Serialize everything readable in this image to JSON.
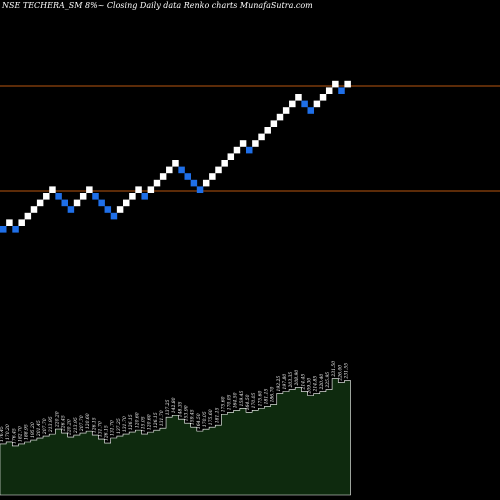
{
  "header": {
    "title": "NSE TECHERA_SM 8%~ Closing Daily data Renko charts MunafaSutra.com"
  },
  "colors": {
    "background": "#000000",
    "up_brick": "#ffffff",
    "down_brick": "#1f6fe8",
    "reference_line": "#b8560f",
    "volume_fill": "#0e2a0e",
    "volume_outline": "#ffffff"
  },
  "chart_data": {
    "type": "renko",
    "brick_directions": [
      "down",
      "up",
      "down",
      "up",
      "up",
      "up",
      "up",
      "up",
      "up",
      "down",
      "down",
      "down",
      "up",
      "up",
      "up",
      "down",
      "down",
      "down",
      "down",
      "up",
      "up",
      "up",
      "up",
      "down",
      "up",
      "up",
      "up",
      "up",
      "up",
      "down",
      "down",
      "down",
      "down",
      "up",
      "up",
      "up",
      "up",
      "up",
      "up",
      "up",
      "down",
      "up",
      "up",
      "up",
      "up",
      "up",
      "up",
      "up",
      "up",
      "down",
      "down",
      "up",
      "up",
      "up",
      "up",
      "down",
      "up"
    ],
    "reference_lines": [
      "upper",
      "lower"
    ],
    "volume_labels": [
      "176.45",
      "170.20",
      "176.45",
      "182.70",
      "188.95",
      "195.20",
      "201.45",
      "207.70",
      "213.95",
      "220.20",
      "226.45",
      "220.20",
      "213.95",
      "207.70",
      "120.60",
      "126.15",
      "131.70",
      "126.15",
      "131.70",
      "137.25",
      "131.70",
      "126.15",
      "120.60",
      "115.05",
      "120.60",
      "126.15",
      "131.70",
      "137.25",
      "142.80",
      "148.35",
      "153.90",
      "159.45",
      "164.50",
      "170.05",
      "175.60",
      "181.15",
      "175.60",
      "170.05",
      "164.50",
      "159.45",
      "164.50",
      "170.05",
      "175.60",
      "181.15",
      "186.70",
      "192.25",
      "197.80",
      "203.35",
      "208.90",
      "214.45",
      "209.30",
      "214.85",
      "220.40",
      "225.95",
      "231.50",
      "226.00",
      "231.55"
    ]
  }
}
